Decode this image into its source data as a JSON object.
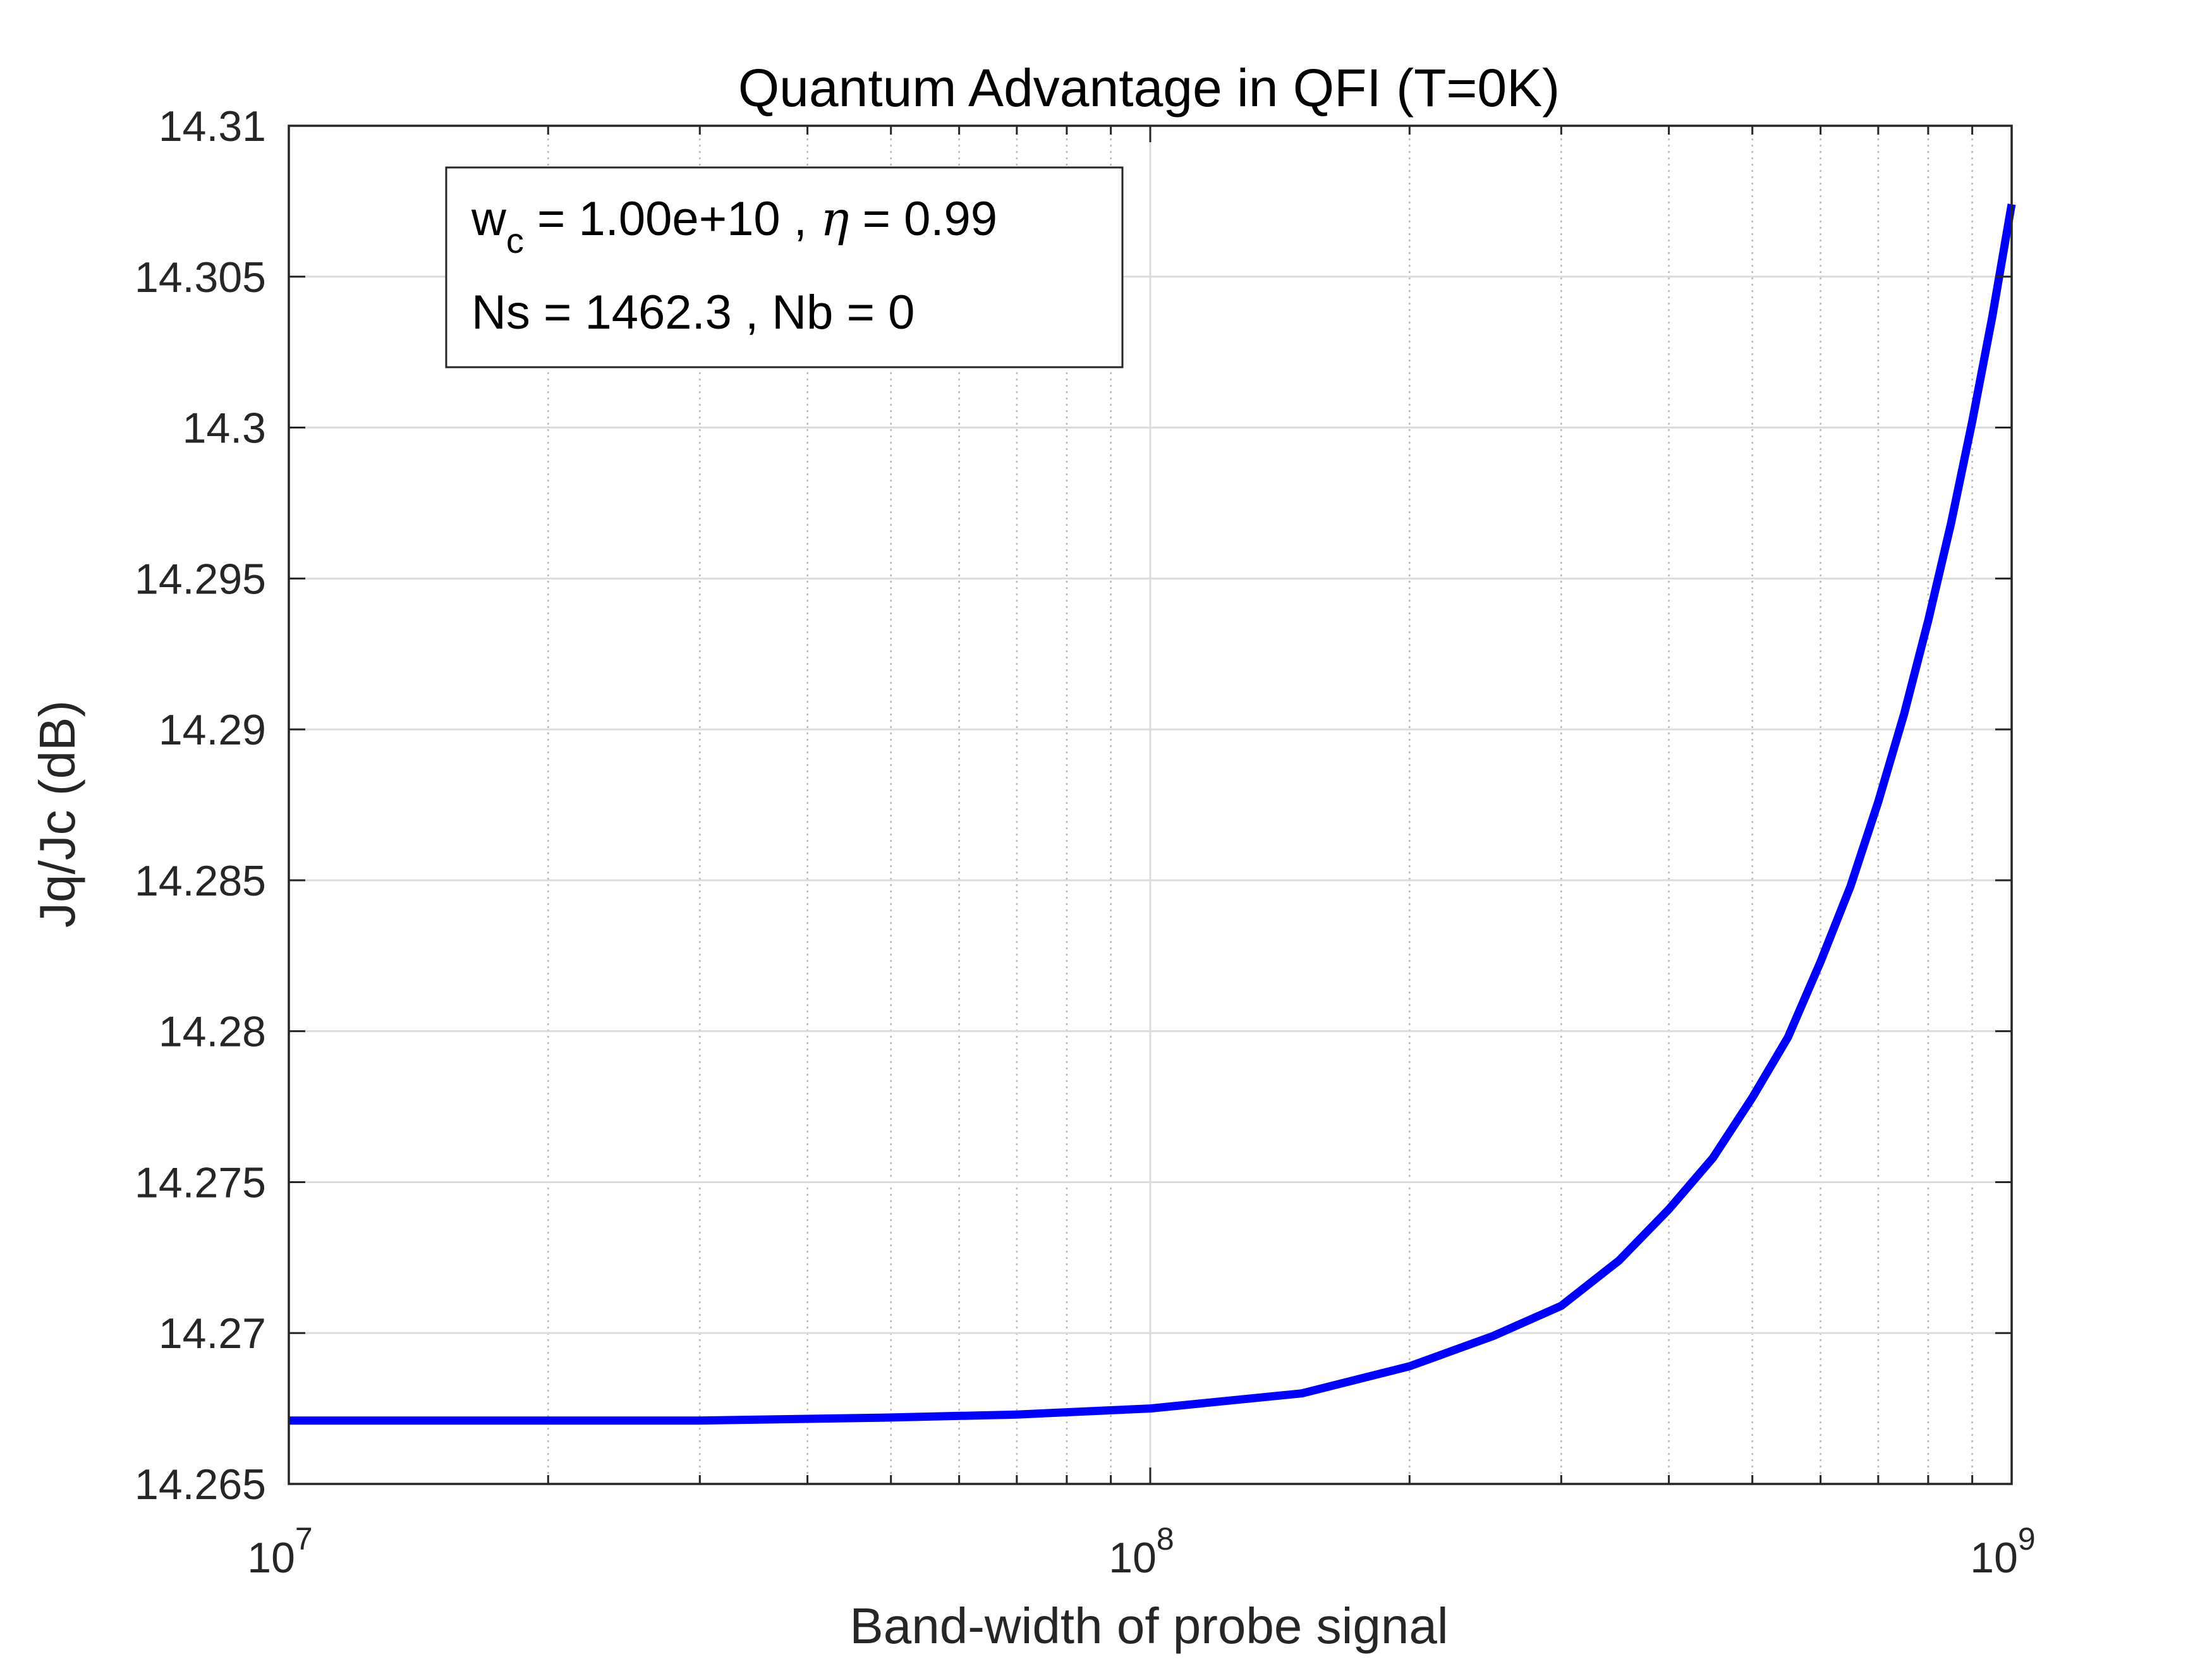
{
  "chart_data": {
    "type": "line",
    "title": "Quantum Advantage in QFI (T=0K)",
    "xlabel": "Band-width of probe signal",
    "ylabel": "Jq/Jc (dB)",
    "xscale": "log",
    "xlim": [
      10000000,
      1000000000
    ],
    "ylim": [
      14.265,
      14.31
    ],
    "grid": true,
    "x_ticks": [
      {
        "value": 10000000,
        "base": "10",
        "exp": "7"
      },
      {
        "value": 100000000,
        "base": "10",
        "exp": "8"
      },
      {
        "value": 1000000000,
        "base": "10",
        "exp": "9"
      }
    ],
    "y_ticks": [
      {
        "value": 14.265,
        "label": "14.265"
      },
      {
        "value": 14.27,
        "label": "14.27"
      },
      {
        "value": 14.275,
        "label": "14.275"
      },
      {
        "value": 14.28,
        "label": "14.28"
      },
      {
        "value": 14.285,
        "label": "14.285"
      },
      {
        "value": 14.29,
        "label": "14.29"
      },
      {
        "value": 14.295,
        "label": "14.295"
      },
      {
        "value": 14.3,
        "label": "14.3"
      },
      {
        "value": 14.305,
        "label": "14.305"
      },
      {
        "value": 14.31,
        "label": "14.31"
      }
    ],
    "series": [
      {
        "color": "#0000ff",
        "x": [
          10000000,
          20000000,
          30000000,
          50000000,
          70000000,
          100000000,
          150000000,
          200000000,
          250000000,
          300000000,
          350000000,
          400000000,
          450000000,
          500000000,
          550000000,
          600000000,
          650000000,
          700000000,
          750000000,
          800000000,
          850000000,
          900000000,
          950000000,
          1000000000
        ],
        "y": [
          14.2671,
          14.2671,
          14.2671,
          14.2672,
          14.2673,
          14.2675,
          14.268,
          14.2689,
          14.2699,
          14.2709,
          14.2724,
          14.2741,
          14.2758,
          14.2778,
          14.2798,
          14.2823,
          14.2848,
          14.2876,
          14.2905,
          14.2936,
          14.2968,
          14.3002,
          14.3037,
          14.3074
        ]
      }
    ],
    "annotation": {
      "line1_prefix": "w",
      "line1_sub": "c",
      "line1_mid": " = 1.00e+10 , ",
      "line1_greek": "η",
      "line1_suffix": " = 0.99",
      "line2": "Ns = 1462.3 , Nb = 0"
    }
  }
}
